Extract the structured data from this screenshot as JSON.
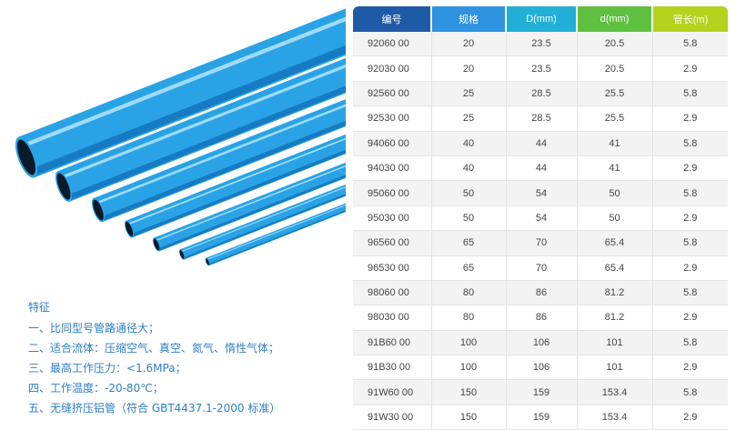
{
  "table": {
    "headers": [
      "编号",
      "规格",
      "D(mm)",
      "d(mm)",
      "管长(m)"
    ],
    "header_colors": [
      "#1f5aa6",
      "#2e93e0",
      "#21afd8",
      "#5fbf3f",
      "#b5d21d"
    ],
    "rows": [
      [
        "92060 00",
        "20",
        "23.5",
        "20.5",
        "5.8"
      ],
      [
        "92030 00",
        "20",
        "23.5",
        "20.5",
        "2.9"
      ],
      [
        "92560 00",
        "25",
        "28.5",
        "25.5",
        "5.8"
      ],
      [
        "92530 00",
        "25",
        "28.5",
        "25.5",
        "2.9"
      ],
      [
        "94060 00",
        "40",
        "44",
        "41",
        "5.8"
      ],
      [
        "94030 00",
        "40",
        "44",
        "41",
        "2.9"
      ],
      [
        "95060 00",
        "50",
        "54",
        "50",
        "5.8"
      ],
      [
        "95030 00",
        "50",
        "54",
        "50",
        "2.9"
      ],
      [
        "96560 00",
        "65",
        "70",
        "65.4",
        "5.8"
      ],
      [
        "96530 00",
        "65",
        "70",
        "65.4",
        "2.9"
      ],
      [
        "98060 00",
        "80",
        "86",
        "81.2",
        "5.8"
      ],
      [
        "98030 00",
        "80",
        "86",
        "81.2",
        "2.9"
      ],
      [
        "91B60 00",
        "100",
        "106",
        "101",
        "5.8"
      ],
      [
        "91B30 00",
        "100",
        "106",
        "101",
        "2.9"
      ],
      [
        "91W60 00",
        "150",
        "159",
        "153.4",
        "5.8"
      ],
      [
        "91W30 00",
        "150",
        "159",
        "153.4",
        "2.9"
      ]
    ]
  },
  "features": {
    "title": "特征",
    "items": [
      "一、比同型号管路通径大；",
      "二、适合流体：压缩空气、真空、氮气、惰性气体；",
      "三、最高工作压力：<1.6MPa；",
      "四、工作温度：-20-80℃；",
      "五、无缝挤压铝管（符合 GBT4437.1-2000 标准）"
    ]
  },
  "image": {
    "subject": "blue-aluminum-pipes",
    "pipe_color": "#2aa3e6"
  }
}
